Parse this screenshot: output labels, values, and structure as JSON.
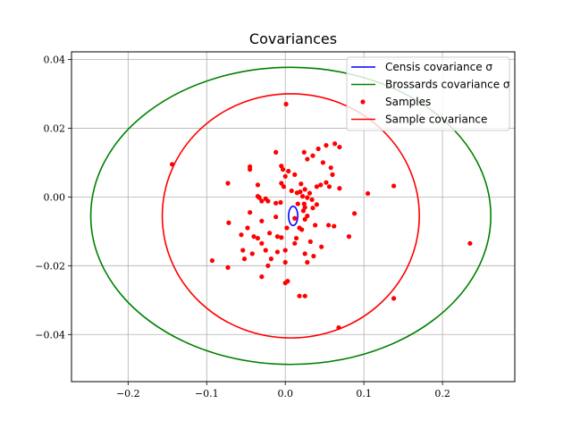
{
  "chart_data": {
    "type": "scatter",
    "title": "Covariances",
    "xlabel": "",
    "ylabel": "",
    "xlim": [
      -0.272,
      0.292
    ],
    "ylim": [
      -0.0537,
      0.0422
    ],
    "grid": true,
    "legend_position": "top-right",
    "xticks": [
      -0.2,
      -0.1,
      0.0,
      0.1,
      0.2
    ],
    "xtick_labels": [
      "−0.2",
      "−0.1",
      "0.0",
      "0.1",
      "0.2"
    ],
    "yticks": [
      0.04,
      0.02,
      0.0,
      -0.02,
      -0.04
    ],
    "ytick_labels": [
      "0.04",
      "0.02",
      "0.00",
      "−0.02",
      "−0.04"
    ],
    "legend": [
      {
        "label": "Censis covariance σ",
        "kind": "line",
        "color": "#0000ff"
      },
      {
        "label": "Brossards covariance σ",
        "kind": "line",
        "color": "#008000"
      },
      {
        "label": "Samples",
        "kind": "marker",
        "color": "#ff0000"
      },
      {
        "label": "Sample covariance",
        "kind": "line",
        "color": "#ff0000"
      }
    ],
    "ellipses": [
      {
        "name": "Censis covariance σ",
        "color": "#0000ff",
        "center": [
          0.01,
          -0.0055
        ],
        "radii": [
          0.0058,
          0.0028
        ]
      },
      {
        "name": "Brossards covariance σ",
        "color": "#008000",
        "center": [
          0.007,
          -0.0055
        ],
        "radii": [
          0.2545,
          0.0432
        ]
      },
      {
        "name": "Sample covariance",
        "color": "#ff0000",
        "center": [
          0.007,
          -0.0055
        ],
        "radii": [
          0.1635,
          0.0355
        ]
      }
    ],
    "series": [
      {
        "name": "Samples",
        "color": "#ff0000",
        "points": [
          [
            0.001,
            0.027
          ],
          [
            -0.144,
            0.0095
          ],
          [
            -0.045,
            0.0088
          ],
          [
            -0.045,
            0.008
          ],
          [
            -0.005,
            0.009
          ],
          [
            -0.003,
            0.008
          ],
          [
            0.004,
            0.0075
          ],
          [
            0.0,
            0.006
          ],
          [
            0.012,
            0.0065
          ],
          [
            -0.005,
            0.004
          ],
          [
            -0.002,
            0.003
          ],
          [
            -0.035,
            0.0035
          ],
          [
            -0.073,
            0.004
          ],
          [
            0.024,
            0.013
          ],
          [
            0.028,
            0.011
          ],
          [
            0.035,
            0.012
          ],
          [
            0.042,
            0.014
          ],
          [
            0.052,
            0.015
          ],
          [
            0.063,
            0.0155
          ],
          [
            0.069,
            0.0145
          ],
          [
            -0.012,
            0.013
          ],
          [
            0.048,
            0.01
          ],
          [
            0.058,
            0.0085
          ],
          [
            0.06,
            0.0065
          ],
          [
            0.052,
            0.0042
          ],
          [
            0.045,
            0.0035
          ],
          [
            0.056,
            0.003
          ],
          [
            0.04,
            0.003
          ],
          [
            0.069,
            0.0025
          ],
          [
            0.105,
            0.001
          ],
          [
            0.138,
            0.0032
          ],
          [
            0.02,
            0.0038
          ],
          [
            0.025,
            0.0022
          ],
          [
            0.019,
            0.0015
          ],
          [
            0.015,
            0.0012
          ],
          [
            0.008,
            0.0018
          ],
          [
            0.031,
            0.0011
          ],
          [
            0.022,
            0.0002
          ],
          [
            0.028,
            -0.0002
          ],
          [
            0.034,
            -0.0008
          ],
          [
            -0.035,
            0.0002
          ],
          [
            -0.033,
            -0.0002
          ],
          [
            -0.025,
            -0.0005
          ],
          [
            -0.022,
            -0.0012
          ],
          [
            -0.03,
            -0.0012
          ],
          [
            -0.012,
            -0.0018
          ],
          [
            -0.006,
            -0.0016
          ],
          [
            0.025,
            -0.003
          ],
          [
            0.023,
            -0.004
          ],
          [
            0.028,
            -0.0055
          ],
          [
            0.025,
            -0.0065
          ],
          [
            0.035,
            -0.0032
          ],
          [
            0.012,
            -0.0062
          ],
          [
            -0.045,
            -0.0045
          ],
          [
            -0.03,
            -0.007
          ],
          [
            -0.012,
            -0.0058
          ],
          [
            -0.072,
            -0.0075
          ],
          [
            -0.048,
            -0.009
          ],
          [
            0.002,
            -0.009
          ],
          [
            0.018,
            -0.009
          ],
          [
            0.021,
            -0.0095
          ],
          [
            0.038,
            -0.0082
          ],
          [
            0.055,
            -0.0082
          ],
          [
            0.062,
            -0.0085
          ],
          [
            0.088,
            -0.0048
          ],
          [
            -0.02,
            -0.0105
          ],
          [
            -0.04,
            -0.0115
          ],
          [
            -0.035,
            -0.012
          ],
          [
            -0.01,
            -0.0115
          ],
          [
            -0.005,
            -0.0118
          ],
          [
            0.014,
            -0.012
          ],
          [
            -0.056,
            -0.011
          ],
          [
            0.032,
            -0.013
          ],
          [
            -0.03,
            -0.0135
          ],
          [
            -0.025,
            -0.0155
          ],
          [
            0.0,
            -0.0155
          ],
          [
            0.012,
            -0.0135
          ],
          [
            0.046,
            -0.0145
          ],
          [
            -0.042,
            -0.0165
          ],
          [
            -0.01,
            -0.016
          ],
          [
            -0.018,
            -0.018
          ],
          [
            -0.054,
            -0.0155
          ],
          [
            0.025,
            -0.0165
          ],
          [
            0.036,
            -0.0172
          ],
          [
            -0.052,
            -0.018
          ],
          [
            -0.093,
            -0.0185
          ],
          [
            -0.073,
            -0.0205
          ],
          [
            -0.022,
            -0.02
          ],
          [
            0.0,
            -0.019
          ],
          [
            0.028,
            -0.019
          ],
          [
            0.081,
            -0.0115
          ],
          [
            0.235,
            -0.0135
          ],
          [
            -0.03,
            -0.0232
          ],
          [
            0.003,
            -0.0245
          ],
          [
            0.0,
            -0.025
          ],
          [
            0.018,
            -0.0288
          ],
          [
            0.025,
            -0.0288
          ],
          [
            0.138,
            -0.0295
          ],
          [
            0.068,
            -0.038
          ],
          [
            0.024,
            -0.002
          ],
          [
            0.016,
            -0.002
          ],
          [
            0.04,
            -0.0022
          ]
        ]
      }
    ]
  }
}
